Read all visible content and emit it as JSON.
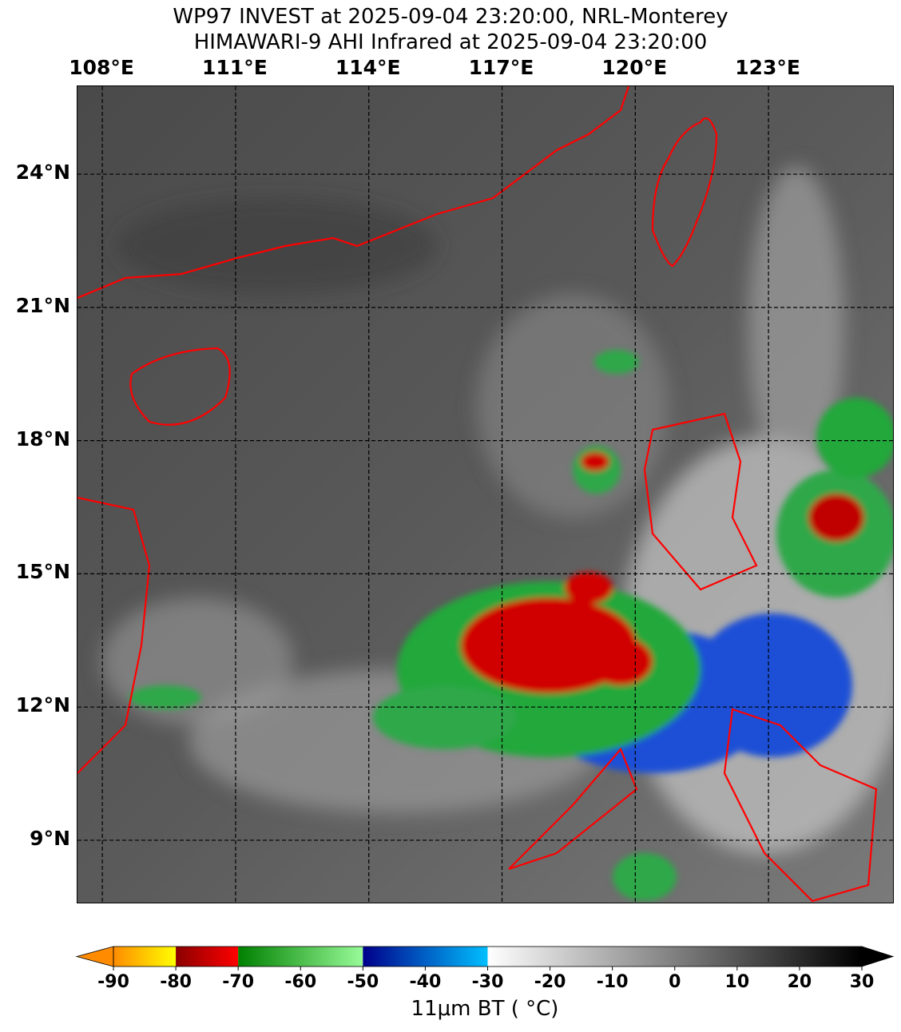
{
  "title_line1": "WP97 INVEST at 2025-09-04 23:20:00, NRL-Monterey",
  "title_line2": "HIMAWARI-9 AHI Infrared at 2025-09-04 23:20:00",
  "map": {
    "lon_range": [
      107.44,
      125.84
    ],
    "lat_range": [
      7.56,
      25.98
    ],
    "lon_ticks": [
      {
        "value": 108,
        "label": "108°E"
      },
      {
        "value": 111,
        "label": "111°E"
      },
      {
        "value": 114,
        "label": "114°E"
      },
      {
        "value": 117,
        "label": "117°E"
      },
      {
        "value": 120,
        "label": "120°E"
      },
      {
        "value": 123,
        "label": "123°E"
      }
    ],
    "lat_ticks": [
      {
        "value": 24,
        "label": "24°N"
      },
      {
        "value": 21,
        "label": "21°N"
      },
      {
        "value": 18,
        "label": "18°N"
      },
      {
        "value": 15,
        "label": "15°N"
      },
      {
        "value": 12,
        "label": "12°N"
      },
      {
        "value": 9,
        "label": "9°N"
      }
    ],
    "gridlines": "dashed",
    "coastline_color": "#ff0000"
  },
  "colorbar": {
    "label": "11μm BT ( °C)",
    "range": [
      -90,
      30
    ],
    "extend": "both",
    "ticks": [
      "-90",
      "-80",
      "-70",
      "-60",
      "-50",
      "-40",
      "-30",
      "-20",
      "-10",
      "0",
      "10",
      "20",
      "30"
    ],
    "segments": [
      {
        "from": -90,
        "to": -80,
        "colors": [
          "#ff8c00",
          "#ffff00"
        ]
      },
      {
        "from": -80,
        "to": -70,
        "colors": [
          "#8b0000",
          "#ff0000"
        ]
      },
      {
        "from": -70,
        "to": -50,
        "colors": [
          "#008000",
          "#98fb98"
        ]
      },
      {
        "from": -50,
        "to": -30,
        "colors": [
          "#00008b",
          "#00bfff"
        ]
      },
      {
        "from": -30,
        "to": 30,
        "colors": [
          "#ffffff",
          "#000000"
        ]
      }
    ],
    "under_color": "#ff8c00",
    "over_color": "#000000"
  }
}
